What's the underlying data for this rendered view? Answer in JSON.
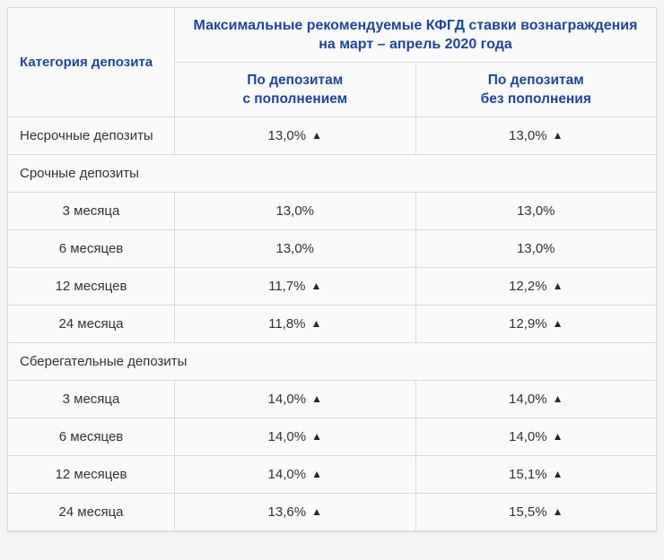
{
  "colors": {
    "page_bg": "#f4f4f4",
    "cell_bg": "#fafafa",
    "header_text": "#1d4699",
    "body_text": "#333333",
    "border": "#d9d9d9",
    "outer_border": "#cfcfcf",
    "triangle": "#1f2839"
  },
  "header": {
    "category": "Категория депозита",
    "title_line1": "Максимальные рекомендуемые КФГД ставки вознаграждения",
    "title_line2": "на март – апрель 2020 года",
    "col_with_line1": "По депозитам",
    "col_with_line2": "с пополнением",
    "col_without_line1": "По депозитам",
    "col_without_line2": "без пополнения"
  },
  "icons": {
    "up_triangle": "▲"
  },
  "chart_data": {
    "type": "table",
    "title": "Максимальные рекомендуемые КФГД ставки вознаграждения на март – апрель 2020 года",
    "columns": [
      "Категория депозита",
      "По депозитам с пополнением",
      "По депозитам без пополнения"
    ],
    "rows": [
      {
        "kind": "data",
        "label": "Несрочные депозиты",
        "label_align": "left",
        "values": [
          "13,0%",
          "13,0%"
        ],
        "up": [
          true,
          true
        ]
      },
      {
        "kind": "section",
        "label": "Срочные депозиты"
      },
      {
        "kind": "data",
        "label": "3 месяца",
        "label_align": "center",
        "values": [
          "13,0%",
          "13,0%"
        ],
        "up": [
          false,
          false
        ]
      },
      {
        "kind": "data",
        "label": "6 месяцев",
        "label_align": "center",
        "values": [
          "13,0%",
          "13,0%"
        ],
        "up": [
          false,
          false
        ]
      },
      {
        "kind": "data",
        "label": "12 месяцев",
        "label_align": "center",
        "values": [
          "11,7%",
          "12,2%"
        ],
        "up": [
          true,
          true
        ]
      },
      {
        "kind": "data",
        "label": "24 месяца",
        "label_align": "center",
        "values": [
          "11,8%",
          "12,9%"
        ],
        "up": [
          true,
          true
        ]
      },
      {
        "kind": "section",
        "label": "Сберегательные депозиты"
      },
      {
        "kind": "data",
        "label": "3 месяца",
        "label_align": "center",
        "values": [
          "14,0%",
          "14,0%"
        ],
        "up": [
          true,
          true
        ]
      },
      {
        "kind": "data",
        "label": "6 месяцев",
        "label_align": "center",
        "values": [
          "14,0%",
          "14,0%"
        ],
        "up": [
          true,
          true
        ]
      },
      {
        "kind": "data",
        "label": "12 месяцев",
        "label_align": "center",
        "values": [
          "14,0%",
          "15,1%"
        ],
        "up": [
          true,
          true
        ]
      },
      {
        "kind": "data",
        "label": "24 месяца",
        "label_align": "center",
        "values": [
          "13,6%",
          "15,5%"
        ],
        "up": [
          true,
          true
        ]
      }
    ]
  }
}
